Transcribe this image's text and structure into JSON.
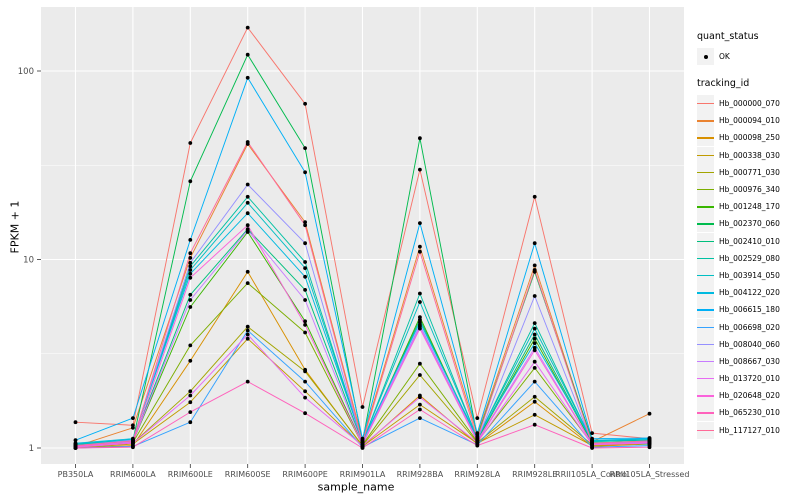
{
  "chart_data": {
    "type": "line",
    "title": "",
    "xlabel": "sample_name",
    "ylabel": "FPKM + 1",
    "yscale": "log10",
    "ylim": [
      1,
      230
    ],
    "yticks": [
      1,
      10,
      100
    ],
    "ytick_labels": [
      "1",
      "10",
      "100"
    ],
    "grid": "on",
    "legend_position": "right",
    "panel_bg": "#EBEBEB",
    "grid_color": "#FFFFFF",
    "point_color": "#000000",
    "categories": [
      "PB350LA",
      "RRIM600LA",
      "RRIM600LE",
      "RRIM600SE",
      "RRIM600PE",
      "RRIM901LA",
      "RRIM928BA",
      "RRIM928LA",
      "RRIM928LE",
      "RRII105LA_Control",
      "RRII105LA_Stressed"
    ],
    "series": [
      {
        "name": "Hb_000000_070",
        "color": "#F8766D",
        "values": [
          1.37,
          1.32,
          41.5,
          170,
          67,
          1.65,
          30,
          1.44,
          21.5,
          1.2,
          1.12
        ]
      },
      {
        "name": "Hb_000094_010",
        "color": "#EA8331",
        "values": [
          1.02,
          1.28,
          10.2,
          41,
          15.8,
          1.1,
          11.7,
          1.18,
          9.3,
          1.08,
          1.52
        ]
      },
      {
        "name": "Hb_000098_250",
        "color": "#D89000",
        "values": [
          1.0,
          1.03,
          2.9,
          8.6,
          2.6,
          1.02,
          1.9,
          1.05,
          1.76,
          1.02,
          1.05
        ]
      },
      {
        "name": "Hb_000338_030",
        "color": "#C09B00",
        "values": [
          1.0,
          1.05,
          1.75,
          3.8,
          2.0,
          1.02,
          1.7,
          1.06,
          1.5,
          1.03,
          1.06
        ]
      },
      {
        "name": "Hb_000771_030",
        "color": "#A3A500",
        "values": [
          1.01,
          1.06,
          2.0,
          4.4,
          2.55,
          1.03,
          2.44,
          1.07,
          1.87,
          1.04,
          1.07
        ]
      },
      {
        "name": "Hb_000976_340",
        "color": "#7CAE00",
        "values": [
          1.01,
          1.07,
          3.5,
          7.5,
          4.1,
          1.04,
          2.8,
          1.08,
          2.66,
          1.05,
          1.08
        ]
      },
      {
        "name": "Hb_001248_170",
        "color": "#39B600",
        "values": [
          1.02,
          1.08,
          5.6,
          14.0,
          4.7,
          1.05,
          4.95,
          1.1,
          3.8,
          1.06,
          1.09
        ]
      },
      {
        "name": "Hb_002370_060",
        "color": "#00BB4E",
        "values": [
          1.05,
          1.1,
          26,
          122,
          39,
          1.08,
          44,
          1.15,
          8.6,
          1.1,
          1.1
        ]
      },
      {
        "name": "Hb_002410_010",
        "color": "#00BF7D",
        "values": [
          1.03,
          1.09,
          6.5,
          14.5,
          6.9,
          1.06,
          4.8,
          1.11,
          4.0,
          1.07,
          1.05
        ]
      },
      {
        "name": "Hb_002529_080",
        "color": "#00C1A3",
        "values": [
          1.04,
          1.1,
          9.2,
          21.5,
          9.7,
          1.07,
          6.6,
          1.12,
          4.6,
          1.08,
          1.1
        ]
      },
      {
        "name": "Hb_003914_050",
        "color": "#00BFC4",
        "values": [
          1.05,
          1.11,
          8.8,
          20,
          9.0,
          1.08,
          5.95,
          1.13,
          4.3,
          1.09,
          1.11
        ]
      },
      {
        "name": "Hb_004122_020",
        "color": "#00BAE0",
        "values": [
          1.06,
          1.12,
          8.4,
          17.6,
          8.1,
          1.09,
          4.65,
          1.14,
          3.6,
          1.1,
          1.12
        ]
      },
      {
        "name": "Hb_006615_180",
        "color": "#00B0F6",
        "values": [
          1.1,
          1.44,
          12.7,
          92,
          29,
          1.12,
          15.6,
          1.2,
          12.2,
          1.12,
          1.13
        ]
      },
      {
        "name": "Hb_006698_020",
        "color": "#35A2FF",
        "values": [
          1.0,
          1.02,
          1.37,
          4.2,
          2.25,
          1.01,
          1.44,
          1.04,
          2.25,
          1.01,
          1.03
        ]
      },
      {
        "name": "Hb_008040_060",
        "color": "#9590FF",
        "values": [
          1.03,
          1.1,
          9.6,
          25,
          12.2,
          1.06,
          4.5,
          1.1,
          6.4,
          1.06,
          1.08
        ]
      },
      {
        "name": "Hb_008667_030",
        "color": "#C77CFF",
        "values": [
          1.02,
          1.08,
          6.1,
          14.3,
          6.1,
          1.05,
          4.4,
          1.09,
          3.4,
          1.05,
          1.07
        ]
      },
      {
        "name": "Hb_013720_010",
        "color": "#E76BF3",
        "values": [
          1.01,
          1.06,
          1.9,
          4.0,
          1.85,
          1.03,
          1.86,
          1.07,
          2.87,
          1.04,
          1.06
        ]
      },
      {
        "name": "Hb_020648_020",
        "color": "#FA62DB",
        "values": [
          1.02,
          1.07,
          8.0,
          15.2,
          4.5,
          1.04,
          4.3,
          1.08,
          3.3,
          1.05,
          1.07
        ]
      },
      {
        "name": "Hb_065230_010",
        "color": "#FF62BC",
        "values": [
          1.0,
          1.01,
          1.55,
          2.25,
          1.53,
          1.0,
          1.6,
          1.03,
          1.33,
          1.0,
          1.01
        ]
      },
      {
        "name": "Hb_117127_010",
        "color": "#FF6A98",
        "values": [
          1.03,
          1.09,
          10.8,
          42,
          15.2,
          1.07,
          11.0,
          1.12,
          8.8,
          1.06,
          1.09
        ]
      }
    ]
  },
  "legend": {
    "quant_status_title": "quant_status",
    "ok_label": "OK",
    "tracking_id_title": "tracking_id"
  },
  "axes": {
    "x_title": "sample_name",
    "y_title": "FPKM + 1",
    "tick_color": "#4D4D4D"
  }
}
